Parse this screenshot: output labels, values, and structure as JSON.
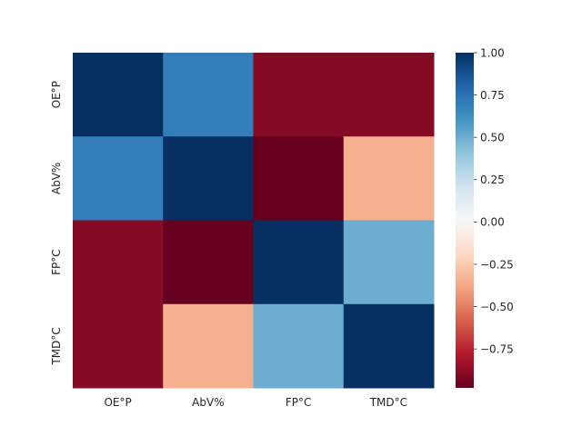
{
  "chart_data": {
    "type": "heatmap",
    "x_categories": [
      "OE°P",
      "AbV%",
      "FP°C",
      "TMD°C"
    ],
    "y_categories": [
      "OE°P",
      "AbV%",
      "FP°C",
      "TMD°C"
    ],
    "values": [
      [
        1.0,
        0.7,
        -0.9,
        -0.9
      ],
      [
        0.7,
        1.0,
        -0.98,
        -0.35
      ],
      [
        -0.9,
        -0.98,
        1.0,
        0.5
      ],
      [
        -0.9,
        -0.35,
        0.5,
        1.0
      ]
    ],
    "colorbar": {
      "min": -0.98,
      "max": 1.0,
      "ticks": [
        1.0,
        0.75,
        0.5,
        0.25,
        0.0,
        -0.25,
        -0.5,
        -0.75
      ],
      "tick_labels": [
        "1.00",
        "0.75",
        "0.50",
        "0.25",
        "0.00",
        "−0.25",
        "−0.50",
        "−0.75"
      ],
      "colormap": "RdBu"
    },
    "title": "",
    "xlabel": "",
    "ylabel": ""
  }
}
